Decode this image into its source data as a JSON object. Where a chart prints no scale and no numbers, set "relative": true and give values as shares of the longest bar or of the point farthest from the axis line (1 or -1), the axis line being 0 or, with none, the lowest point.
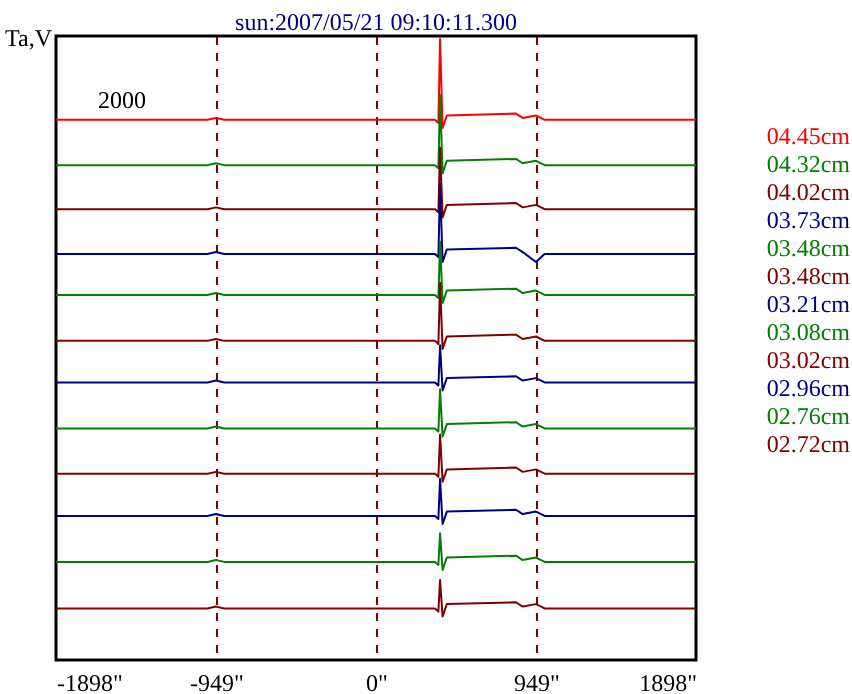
{
  "chart_data": {
    "type": "line",
    "title": "sun:2007/05/21 09:10:11.300",
    "ylabel": "Ta,V",
    "relative": true,
    "annotations": [
      "2000"
    ],
    "xlim": [
      -1898,
      1898
    ],
    "xticks": [
      {
        "value": -1898,
        "label": "-1898\""
      },
      {
        "value": -949,
        "label": "-949\""
      },
      {
        "value": 0,
        "label": "0\""
      },
      {
        "value": 949,
        "label": "949\""
      },
      {
        "value": 1898,
        "label": "1898\""
      }
    ],
    "grid": "x",
    "legend": "right",
    "line_style": "solid",
    "marker": "none",
    "x": [
      -1898,
      -1000,
      -949,
      -900,
      0,
      350,
      370,
      380,
      395,
      420,
      830,
      870,
      949,
      1000,
      1898
    ],
    "series": [
      {
        "name": "04.45cm",
        "color": "#ff0000",
        "values": [
          0.87,
          0.87,
          0.873,
          0.87,
          0.87,
          0.87,
          0.865,
          1.0,
          0.857,
          0.877,
          0.88,
          0.873,
          0.877,
          0.87,
          0.87
        ]
      },
      {
        "name": "04.32cm",
        "color": "#008000",
        "values": [
          0.797,
          0.797,
          0.8,
          0.797,
          0.797,
          0.797,
          0.792,
          0.91,
          0.784,
          0.804,
          0.807,
          0.8,
          0.804,
          0.797,
          0.797
        ]
      },
      {
        "name": "04.02cm",
        "color": "#800000",
        "values": [
          0.726,
          0.726,
          0.729,
          0.726,
          0.726,
          0.726,
          0.721,
          0.825,
          0.713,
          0.733,
          0.736,
          0.729,
          0.733,
          0.726,
          0.726
        ]
      },
      {
        "name": "03.73cm",
        "color": "#000080",
        "values": [
          0.654,
          0.654,
          0.657,
          0.654,
          0.654,
          0.654,
          0.649,
          0.767,
          0.641,
          0.661,
          0.664,
          0.657,
          0.641,
          0.654,
          0.654
        ]
      },
      {
        "name": "03.48cm",
        "color": "#008000",
        "values": [
          0.588,
          0.588,
          0.591,
          0.588,
          0.588,
          0.588,
          0.583,
          0.674,
          0.575,
          0.595,
          0.598,
          0.591,
          0.595,
          0.588,
          0.588
        ]
      },
      {
        "name": "03.48cm",
        "color": "#800000",
        "values": [
          0.514,
          0.514,
          0.517,
          0.514,
          0.514,
          0.514,
          0.509,
          0.607,
          0.501,
          0.521,
          0.524,
          0.517,
          0.521,
          0.514,
          0.514
        ]
      },
      {
        "name": "03.21cm",
        "color": "#000080",
        "values": [
          0.447,
          0.447,
          0.45,
          0.447,
          0.447,
          0.447,
          0.442,
          0.507,
          0.434,
          0.454,
          0.457,
          0.45,
          0.454,
          0.447,
          0.447
        ]
      },
      {
        "name": "03.08cm",
        "color": "#008000",
        "values": [
          0.373,
          0.373,
          0.376,
          0.373,
          0.373,
          0.373,
          0.368,
          0.436,
          0.36,
          0.38,
          0.383,
          0.376,
          0.38,
          0.373,
          0.373
        ]
      },
      {
        "name": "03.02cm",
        "color": "#800000",
        "values": [
          0.3,
          0.3,
          0.303,
          0.3,
          0.3,
          0.3,
          0.295,
          0.363,
          0.287,
          0.307,
          0.31,
          0.303,
          0.307,
          0.3,
          0.3
        ]
      },
      {
        "name": "02.96cm",
        "color": "#000080",
        "values": [
          0.232,
          0.232,
          0.235,
          0.232,
          0.232,
          0.232,
          0.227,
          0.292,
          0.219,
          0.239,
          0.242,
          0.235,
          0.239,
          0.232,
          0.232
        ]
      },
      {
        "name": "02.76cm",
        "color": "#008000",
        "values": [
          0.158,
          0.158,
          0.161,
          0.158,
          0.158,
          0.158,
          0.153,
          0.204,
          0.145,
          0.165,
          0.168,
          0.161,
          0.165,
          0.158,
          0.158
        ]
      },
      {
        "name": "02.72cm",
        "color": "#800000",
        "values": [
          0.083,
          0.083,
          0.086,
          0.083,
          0.083,
          0.083,
          0.078,
          0.129,
          0.07,
          0.09,
          0.093,
          0.086,
          0.09,
          0.083,
          0.083
        ]
      }
    ]
  }
}
